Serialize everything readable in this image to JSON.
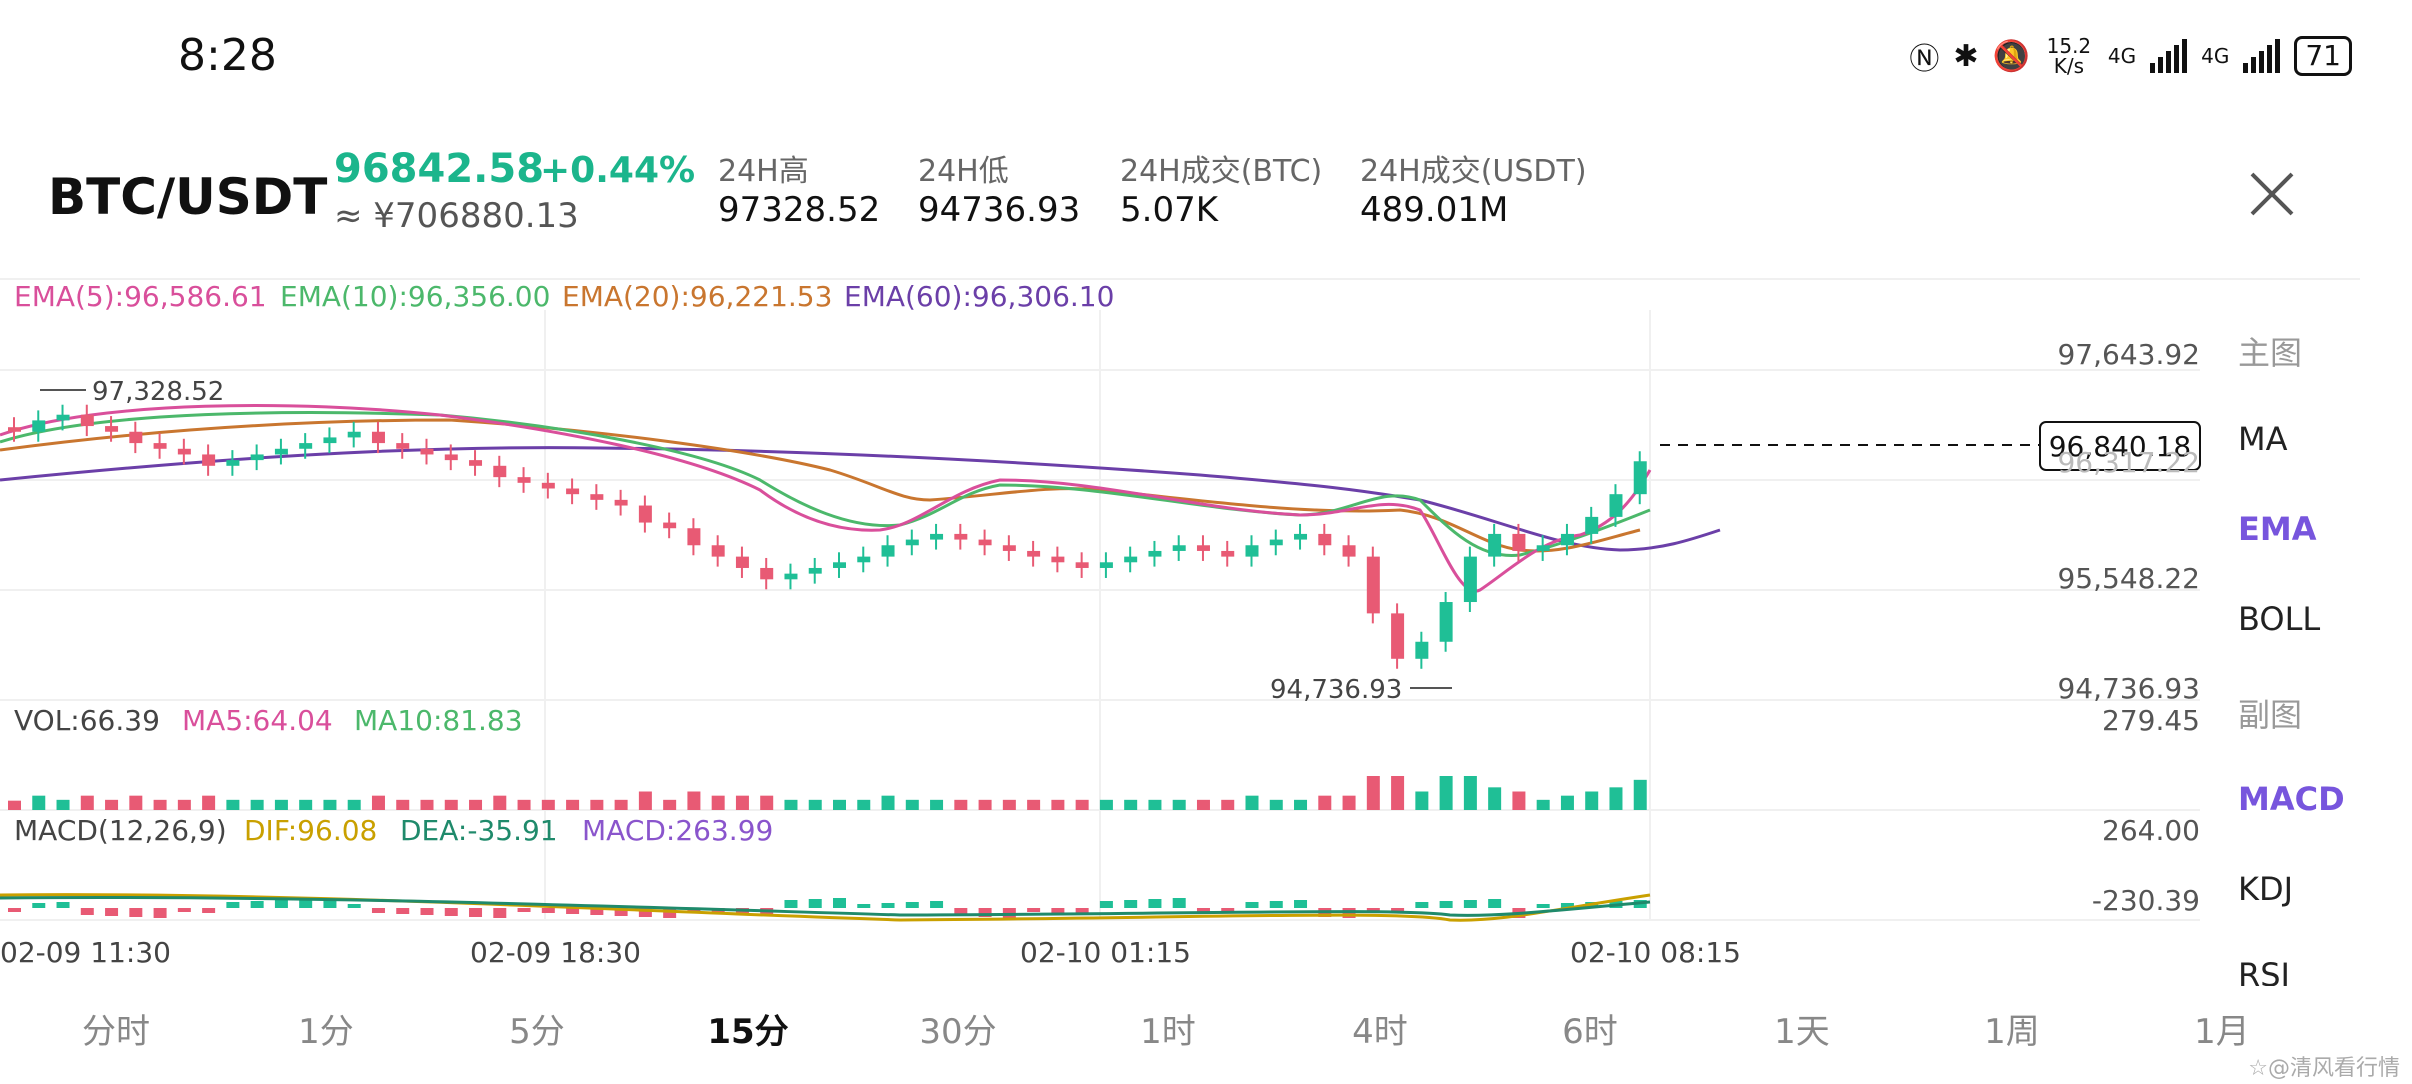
{
  "status_bar": {
    "time": "8:28",
    "net_speed": "15.2 K/s",
    "net_type_1": "4G",
    "net_type_2": "4G",
    "battery": "71"
  },
  "header": {
    "pair": "BTC/USDT",
    "price": "96842.58",
    "change": "+0.44%",
    "cny_price": "≈ ¥706880.13",
    "stats": [
      {
        "label": "24H高",
        "value": "97328.52"
      },
      {
        "label": "24H低",
        "value": "94736.93"
      },
      {
        "label": "24H成交(BTC)",
        "value": "5.07K"
      },
      {
        "label": "24H成交(USDT)",
        "value": "489.01M"
      }
    ]
  },
  "indicators": {
    "ema": [
      "EMA(5):96,586.61",
      "EMA(10):96,356.00",
      "EMA(20):96,221.53",
      "EMA(60):96,306.10"
    ],
    "vol": [
      "VOL:66.39",
      "MA5:64.04",
      "MA10:81.83"
    ],
    "macd": [
      "MACD(12,26,9)",
      "DIF:96.08",
      "DEA:-35.91",
      "MACD:263.99"
    ]
  },
  "price_axis": {
    "top": "97,643.92",
    "mid_hidden": "96,317.22",
    "mid": "95,548.22",
    "bottom": "94,736.93",
    "current": "96,840.18",
    "high_marker": "97,328.52",
    "low_marker": "94,736.93"
  },
  "vol_axis": {
    "top": "279.45"
  },
  "macd_axis": {
    "top": "264.00",
    "bottom": "-230.39"
  },
  "time_axis": [
    "02-09 11:30",
    "02-09 18:30",
    "02-10 01:15",
    "02-10 08:15"
  ],
  "side_menu": {
    "main_group": "主图",
    "main_items": [
      "MA",
      "EMA",
      "BOLL"
    ],
    "sub_group": "副图",
    "sub_items": [
      "MACD",
      "KDJ",
      "RSI"
    ],
    "active_main": "EMA",
    "active_sub": "MACD"
  },
  "timeframes": [
    "分时",
    "1分",
    "5分",
    "15分",
    "30分",
    "1时",
    "4时",
    "6时",
    "1天",
    "1周",
    "1月"
  ],
  "active_timeframe": "15分",
  "watermark": "☆@清风看行情",
  "colors": {
    "up": "#1fbf96",
    "down": "#e85a74",
    "ema5": "#d94f9b",
    "ema10": "#4cb86b",
    "ema20": "#c9762f",
    "ema60": "#6b3fa8",
    "accent": "#7755dd"
  },
  "chart_data": {
    "type": "candlestick",
    "interval": "15m",
    "price_range": [
      94736.93,
      97643.92
    ],
    "candles_close_approx": [
      97100,
      97200,
      97250,
      97150,
      97100,
      97000,
      96950,
      96900,
      96800,
      96850,
      96900,
      96950,
      97000,
      97050,
      97100,
      97000,
      96950,
      96900,
      96850,
      96800,
      96700,
      96650,
      96600,
      96550,
      96500,
      96450,
      96300,
      96250,
      96100,
      96000,
      95900,
      95800,
      95850,
      95900,
      95950,
      96000,
      96100,
      96150,
      96200,
      96150,
      96100,
      96050,
      96000,
      95950,
      95900,
      95950,
      96000,
      96050,
      96100,
      96050,
      96000,
      96100,
      96150,
      96200,
      96100,
      96000,
      95500,
      95100,
      95250,
      95600,
      96000,
      96200,
      96050,
      96100,
      96200,
      96350,
      96550,
      96840
    ]
  }
}
